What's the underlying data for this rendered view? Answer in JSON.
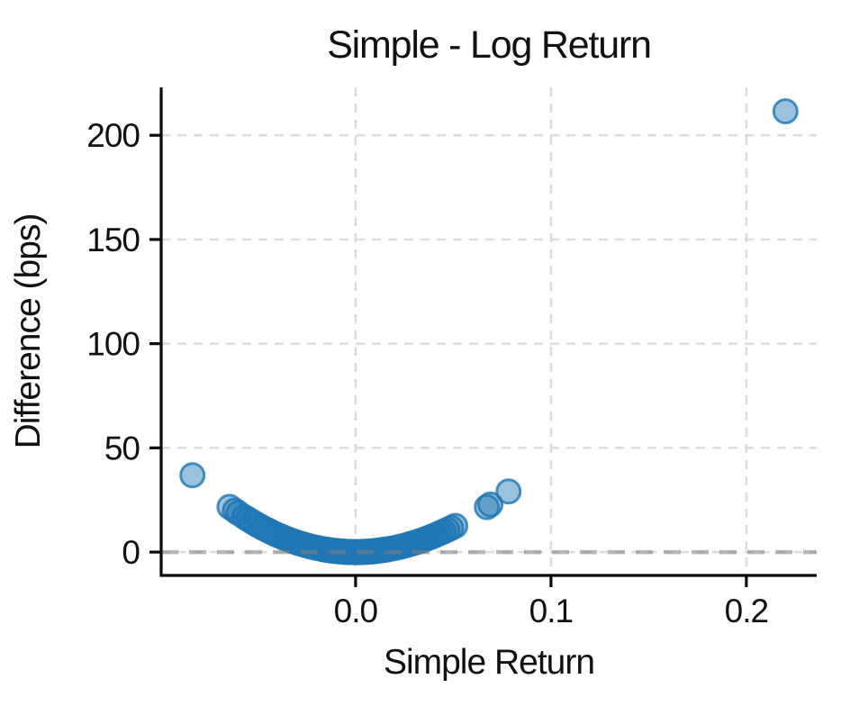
{
  "chart_data": {
    "type": "scatter",
    "title": "Simple - Log Return",
    "xlabel": "Simple Return",
    "ylabel": "Difference (bps)",
    "x_ticks": {
      "values": [
        0.0,
        0.1,
        0.2
      ],
      "labels": [
        "0.0",
        "0.1",
        "0.2"
      ]
    },
    "y_ticks": {
      "values": [
        0,
        50,
        100,
        150,
        200
      ],
      "labels": [
        "0",
        "50",
        "100",
        "150",
        "200"
      ]
    },
    "xlim": [
      -0.0995,
      0.236
    ],
    "ylim": [
      -11.2,
      223
    ],
    "grid": true,
    "grid_style": "dashed",
    "legend_position": "none",
    "reference_line": {
      "y": 0,
      "style": "dashed",
      "color": "#7d7d7d",
      "opacity": 0.55
    },
    "marker": {
      "shape": "circle",
      "radius_px": 13,
      "fill": "#1f77b4",
      "fill_opacity": 0.45,
      "edge": "#1f77b4",
      "edge_opacity": 0.8,
      "edge_width": 3
    },
    "colors": {
      "point_blue": "#1f77b4",
      "gridline": "#dcdcdc",
      "spine": "#0a0a0a",
      "zero_line": "#7d7d7d"
    },
    "series": [
      {
        "name": "simple-minus-log-return",
        "points": [
          [
            -0.0835,
            36.9
          ],
          [
            -0.0645,
            21.7
          ],
          [
            -0.0618,
            19.9
          ],
          [
            -0.06,
            18.7
          ],
          [
            -0.057,
            16.86
          ],
          [
            -0.055,
            15.68
          ],
          [
            -0.053,
            14.54
          ],
          [
            -0.051,
            13.45
          ],
          [
            -0.049,
            12.4
          ],
          [
            -0.047,
            11.39
          ],
          [
            -0.045,
            10.43
          ],
          [
            -0.043,
            9.51
          ],
          [
            -0.041,
            8.63
          ],
          [
            -0.039,
            7.8
          ],
          [
            -0.037,
            7.01
          ],
          [
            -0.035,
            6.27
          ],
          [
            -0.033,
            5.56
          ],
          [
            -0.031,
            4.9
          ],
          [
            -0.029,
            4.29
          ],
          [
            -0.027,
            3.71
          ],
          [
            -0.025,
            3.18
          ],
          [
            -0.023,
            2.69
          ],
          [
            -0.021,
            2.24
          ],
          [
            -0.019,
            1.83
          ],
          [
            -0.017,
            1.46
          ],
          [
            -0.016,
            1.29
          ],
          [
            -0.015,
            1.14
          ],
          [
            -0.014,
            0.99
          ],
          [
            -0.013,
            0.85
          ],
          [
            -0.012,
            0.73
          ],
          [
            -0.011,
            0.61
          ],
          [
            -0.01,
            0.5
          ],
          [
            -0.009,
            0.41
          ],
          [
            -0.008,
            0.32
          ],
          [
            -0.007,
            0.25
          ],
          [
            -0.006,
            0.18
          ],
          [
            -0.005,
            0.13
          ],
          [
            -0.004,
            0.08
          ],
          [
            -0.003,
            0.05
          ],
          [
            -0.002,
            0.02
          ],
          [
            -0.001,
            0.01
          ],
          [
            0.0,
            0.0
          ],
          [
            0.001,
            0.0
          ],
          [
            0.002,
            0.02
          ],
          [
            0.003,
            0.04
          ],
          [
            0.004,
            0.08
          ],
          [
            0.005,
            0.12
          ],
          [
            0.006,
            0.18
          ],
          [
            0.007,
            0.24
          ],
          [
            0.008,
            0.32
          ],
          [
            0.009,
            0.4
          ],
          [
            0.01,
            0.5
          ],
          [
            0.011,
            0.6
          ],
          [
            0.012,
            0.71
          ],
          [
            0.013,
            0.84
          ],
          [
            0.014,
            0.97
          ],
          [
            0.015,
            1.11
          ],
          [
            0.016,
            1.27
          ],
          [
            0.017,
            1.43
          ],
          [
            0.019,
            1.78
          ],
          [
            0.021,
            2.17
          ],
          [
            0.023,
            2.6
          ],
          [
            0.025,
            3.07
          ],
          [
            0.027,
            3.58
          ],
          [
            0.029,
            4.12
          ],
          [
            0.031,
            4.71
          ],
          [
            0.033,
            5.33
          ],
          [
            0.035,
            5.98
          ],
          [
            0.037,
            6.68
          ],
          [
            0.039,
            7.41
          ],
          [
            0.041,
            8.18
          ],
          [
            0.043,
            8.98
          ],
          [
            0.045,
            9.82
          ],
          [
            0.047,
            10.7
          ],
          [
            0.049,
            11.61
          ],
          [
            0.051,
            12.56
          ],
          [
            0.0672,
            21.6
          ],
          [
            0.069,
            22.8
          ],
          [
            0.0783,
            29.1
          ],
          [
            0.22,
            211.5
          ]
        ]
      }
    ]
  }
}
